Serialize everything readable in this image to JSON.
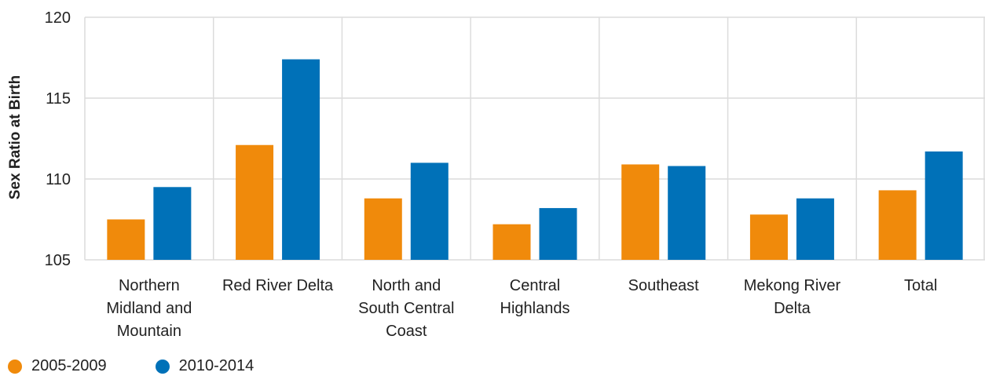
{
  "chart_data": {
    "type": "bar",
    "ylabel": "Sex Ratio at Birth",
    "ylim": [
      105,
      120
    ],
    "yticks": [
      105,
      110,
      115,
      120
    ],
    "categories": [
      [
        "Northern",
        "Midland and",
        "Mountain"
      ],
      [
        "Red River Delta"
      ],
      [
        "North and",
        "South Central",
        "Coast"
      ],
      [
        "Central",
        "Highlands"
      ],
      [
        "Southeast"
      ],
      [
        "Mekong River",
        "Delta"
      ],
      [
        "Total"
      ]
    ],
    "series": [
      {
        "name": "2005-2009",
        "color": "#f08a0b",
        "values": [
          107.5,
          112.1,
          108.8,
          107.2,
          110.9,
          107.8,
          109.3
        ]
      },
      {
        "name": "2010-2014",
        "color": "#0071b8",
        "values": [
          109.5,
          117.4,
          111.0,
          108.2,
          110.8,
          108.8,
          111.7
        ]
      }
    ],
    "grid": true,
    "legend_position": "bottom-left"
  }
}
